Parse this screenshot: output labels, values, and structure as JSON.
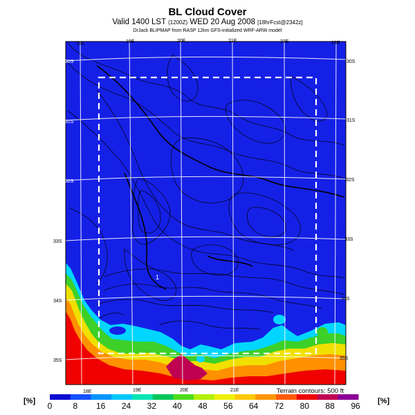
{
  "header": {
    "title": "BL Cloud Cover",
    "valid_line": "Valid 1400 LST",
    "valid_small": "(1200Z)",
    "valid_date": "WED 20 Aug 2008",
    "valid_tail": "[18hrFcst@2342z]",
    "credit": "DrJack BLIPMAP from RASP 12km GFS-initialized WRF-ARW model"
  },
  "axes": {
    "lon_top": [
      "18E",
      "19E",
      "20E",
      "21E",
      "22E",
      "23E"
    ],
    "lon_bottom": [
      "18E",
      "19E",
      "20E",
      "21E"
    ],
    "lat_left": [
      "30S",
      "31S",
      "32S",
      "33S",
      "34S",
      "35S"
    ],
    "lat_right": [
      "30S",
      "31S",
      "32S",
      "33S",
      "34S",
      "35S"
    ]
  },
  "map_annotation": "1",
  "terrain_note": "Terrain contours: 500 ft",
  "colorbar": {
    "unit_label": "[%]",
    "ticks": [
      "0",
      "8",
      "16",
      "24",
      "32",
      "40",
      "48",
      "56",
      "64",
      "72",
      "80",
      "88",
      "96"
    ],
    "colors": [
      "#0a0ad2",
      "#1450ff",
      "#0096ff",
      "#00c8ff",
      "#00e6b4",
      "#00c85a",
      "#50dc1e",
      "#b4f000",
      "#f0f000",
      "#ffc800",
      "#ff9600",
      "#ff5a00",
      "#f00000",
      "#c00050",
      "#8c0096"
    ]
  },
  "colors": {
    "background_field": "#1520e6",
    "domain_box": "#ffffff",
    "grid": "#ffffff",
    "contours": "#000000"
  }
}
